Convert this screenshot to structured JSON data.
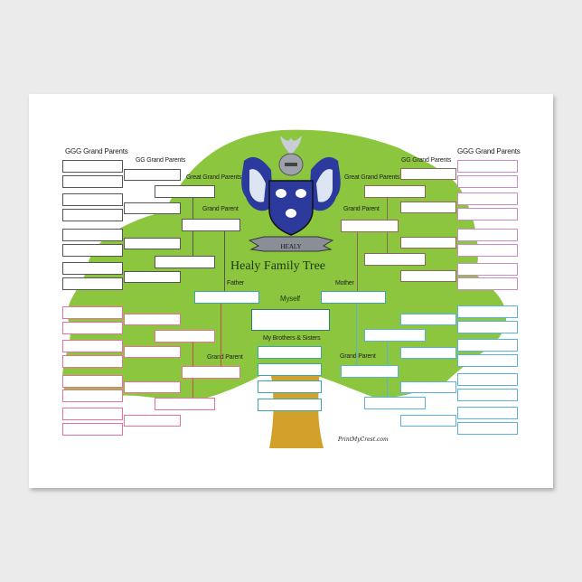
{
  "title": "Healy Family Tree",
  "crest_banner": "HEALY",
  "watermark": "PrintMyCrest.com",
  "labels": {
    "ggg_left": "GGG Grand Parents",
    "gg_left": "GG Grand Parents",
    "great_left": "Great Grand Parents",
    "grand_left_top": "Grand Parent",
    "father": "Father",
    "grand_left_bottom": "Grand  Parent",
    "ggg_right": "GGG Grand Parents",
    "gg_right": "GG Grand Parents",
    "great_right": "Great Grand Parents",
    "grand_right_top": "Grand Parent",
    "mother": "Mother",
    "grand_right_bottom": "Grand  Parent",
    "myself": "Myself",
    "siblings": "My Brothers & Sisters"
  },
  "colors": {
    "canopy": "#8cc63f",
    "trunk": "#d3a02c",
    "paternal_grandfather_line": "#555555",
    "paternal_grandmother_line": "#e8709a",
    "maternal_grandfather_line": "#8a6a5a",
    "maternal_grandfather_ggg": "#c98ac8",
    "maternal_grandmother_line": "#5ab0df",
    "parents_self": "#3aa8a8",
    "crest_blue": "#2b3a9c"
  }
}
